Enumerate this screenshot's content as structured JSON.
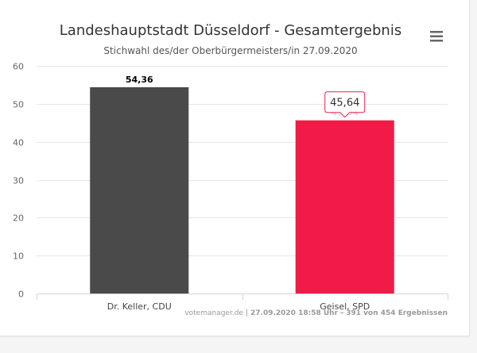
{
  "chart_data": {
    "type": "bar",
    "title": "Landeshauptstadt Düsseldorf - Gesamtergebnis",
    "subtitle": "Stichwahl des/der Oberbürgermeisters/in 27.09.2020",
    "categories": [
      "Dr. Keller, CDU",
      "Geisel, SPD"
    ],
    "values": [
      54.36,
      45.64
    ],
    "data_labels": [
      "54,36",
      "45,64"
    ],
    "colors": [
      "#4a4a4a",
      "#f11b48"
    ],
    "ylim": [
      0,
      60
    ],
    "yticks": [
      0,
      10,
      20,
      30,
      40,
      50,
      60
    ],
    "grid": true,
    "tooltip": {
      "index": 1,
      "text": "45,64"
    }
  },
  "menu_icon": "hamburger-menu-icon",
  "credits": {
    "site": "votemanager.de",
    "separator": "|",
    "timestamp": "27.09.2020 18:58 Uhr",
    "dash": "–",
    "count_text": "391 von 454 Ergebnissen"
  }
}
